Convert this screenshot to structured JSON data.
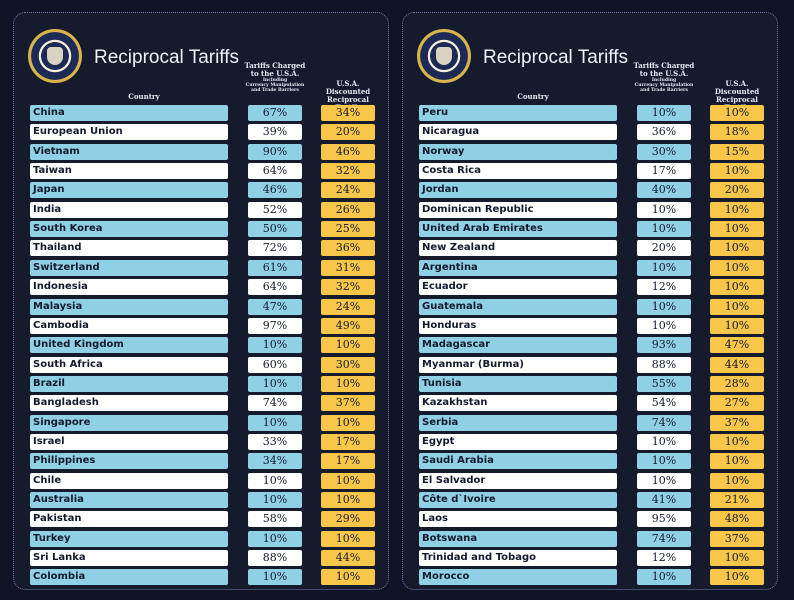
{
  "title": "Reciprocal Tariffs",
  "headers": {
    "country": "Country",
    "tariffs_line1": "Tariffs Charged",
    "tariffs_line2": "to the U.S.A.",
    "tariffs_sub1": "Including",
    "tariffs_sub2": "Currency Manipulation",
    "tariffs_sub3": "and Trade Barriers",
    "recip_line1": "U.S.A. Discounted",
    "recip_line2": "Reciprocal Tariffs"
  },
  "colors": {
    "background": "#151a2d",
    "row_blue": "#8fd0e5",
    "row_white": "#ffffff",
    "reciprocal": "#f8c74a"
  },
  "seal_text": "Seal of the President of the United States",
  "panels": [
    {
      "rows": [
        [
          "China",
          "67%",
          "34%"
        ],
        [
          "European Union",
          "39%",
          "20%"
        ],
        [
          "Vietnam",
          "90%",
          "46%"
        ],
        [
          "Taiwan",
          "64%",
          "32%"
        ],
        [
          "Japan",
          "46%",
          "24%"
        ],
        [
          "India",
          "52%",
          "26%"
        ],
        [
          "South Korea",
          "50%",
          "25%"
        ],
        [
          "Thailand",
          "72%",
          "36%"
        ],
        [
          "Switzerland",
          "61%",
          "31%"
        ],
        [
          "Indonesia",
          "64%",
          "32%"
        ],
        [
          "Malaysia",
          "47%",
          "24%"
        ],
        [
          "Cambodia",
          "97%",
          "49%"
        ],
        [
          "United Kingdom",
          "10%",
          "10%"
        ],
        [
          "South Africa",
          "60%",
          "30%"
        ],
        [
          "Brazil",
          "10%",
          "10%"
        ],
        [
          "Bangladesh",
          "74%",
          "37%"
        ],
        [
          "Singapore",
          "10%",
          "10%"
        ],
        [
          "Israel",
          "33%",
          "17%"
        ],
        [
          "Philippines",
          "34%",
          "17%"
        ],
        [
          "Chile",
          "10%",
          "10%"
        ],
        [
          "Australia",
          "10%",
          "10%"
        ],
        [
          "Pakistan",
          "58%",
          "29%"
        ],
        [
          "Turkey",
          "10%",
          "10%"
        ],
        [
          "Sri Lanka",
          "88%",
          "44%"
        ],
        [
          "Colombia",
          "10%",
          "10%"
        ]
      ]
    },
    {
      "rows": [
        [
          "Peru",
          "10%",
          "10%"
        ],
        [
          "Nicaragua",
          "36%",
          "18%"
        ],
        [
          "Norway",
          "30%",
          "15%"
        ],
        [
          "Costa Rica",
          "17%",
          "10%"
        ],
        [
          "Jordan",
          "40%",
          "20%"
        ],
        [
          "Dominican Republic",
          "10%",
          "10%"
        ],
        [
          "United Arab Emirates",
          "10%",
          "10%"
        ],
        [
          "New Zealand",
          "20%",
          "10%"
        ],
        [
          "Argentina",
          "10%",
          "10%"
        ],
        [
          "Ecuador",
          "12%",
          "10%"
        ],
        [
          "Guatemala",
          "10%",
          "10%"
        ],
        [
          "Honduras",
          "10%",
          "10%"
        ],
        [
          "Madagascar",
          "93%",
          "47%"
        ],
        [
          "Myanmar (Burma)",
          "88%",
          "44%"
        ],
        [
          "Tunisia",
          "55%",
          "28%"
        ],
        [
          "Kazakhstan",
          "54%",
          "27%"
        ],
        [
          "Serbia",
          "74%",
          "37%"
        ],
        [
          "Egypt",
          "10%",
          "10%"
        ],
        [
          "Saudi Arabia",
          "10%",
          "10%"
        ],
        [
          "El Salvador",
          "10%",
          "10%"
        ],
        [
          "Côte d`Ivoire",
          "41%",
          "21%"
        ],
        [
          "Laos",
          "95%",
          "48%"
        ],
        [
          "Botswana",
          "74%",
          "37%"
        ],
        [
          "Trinidad and Tobago",
          "12%",
          "10%"
        ],
        [
          "Morocco",
          "10%",
          "10%"
        ]
      ]
    }
  ]
}
